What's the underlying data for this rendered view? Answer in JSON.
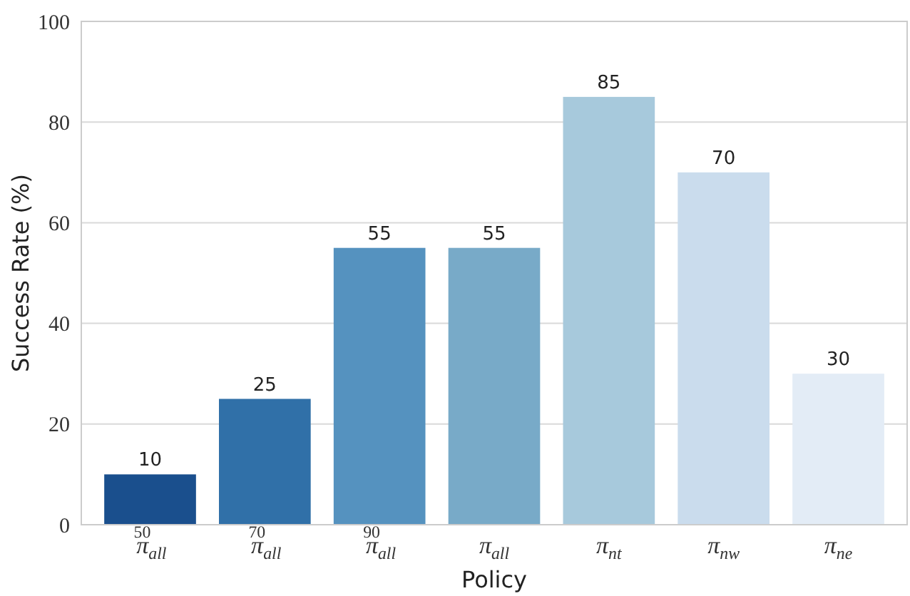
{
  "chart_data": {
    "type": "bar",
    "xlabel": "Policy",
    "ylabel": "Success Rate (%)",
    "categories": [
      "π$_{all}$$^{50}$",
      "π$_{all}$$^{70}$",
      "π$_{all}$$^{90}$",
      "π$_{all}$",
      "π$_{nt}$",
      "π$_{nw}$",
      "π$_{ne}$"
    ],
    "values": [
      10,
      25,
      55,
      55,
      85,
      70,
      30
    ],
    "colors": [
      "#1a4f8d",
      "#3070a8",
      "#5592bf",
      "#78aac8",
      "#a7c9dc",
      "#cadced",
      "#e3ecf6"
    ],
    "ylim": [
      0,
      100
    ],
    "yticks": [
      0,
      20,
      40,
      60,
      80,
      100
    ],
    "grid": "y",
    "data_labels": true
  }
}
